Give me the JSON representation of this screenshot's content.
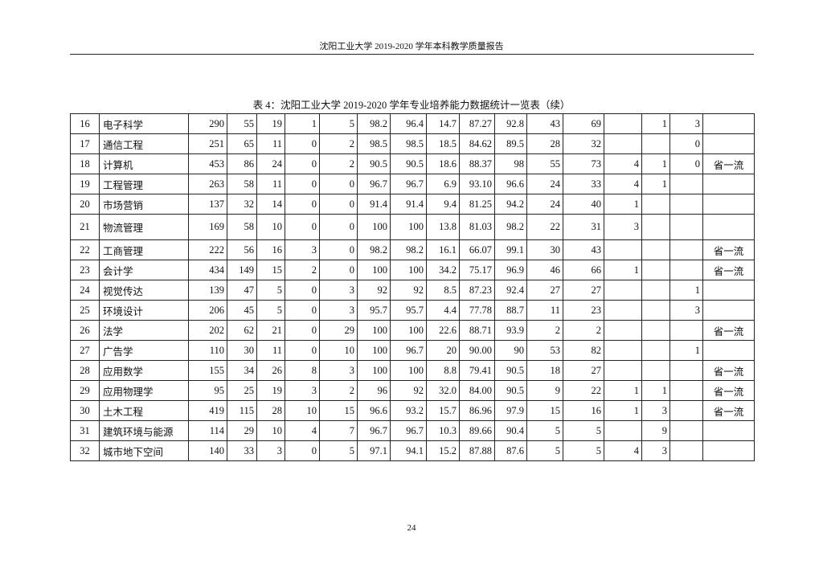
{
  "header": {
    "title": "沈阳工业大学 2019-2020 学年本科教学质量报告"
  },
  "table": {
    "caption": "表 4：沈阳工业大学 2019-2020 学年专业培养能力数据统计一览表（续）",
    "rows": [
      [
        "16",
        "电子科学",
        "290",
        "55",
        "19",
        "1",
        "5",
        "98.2",
        "96.4",
        "14.7",
        "87.27",
        "92.8",
        "43",
        "69",
        "",
        "1",
        "3",
        ""
      ],
      [
        "17",
        "通信工程",
        "251",
        "65",
        "11",
        "0",
        "2",
        "98.5",
        "98.5",
        "18.5",
        "84.62",
        "89.5",
        "28",
        "32",
        "",
        "",
        "0",
        ""
      ],
      [
        "18",
        "计算机",
        "453",
        "86",
        "24",
        "0",
        "2",
        "90.5",
        "90.5",
        "18.6",
        "88.37",
        "98",
        "55",
        "73",
        "4",
        "1",
        "0",
        "省一流"
      ],
      [
        "19",
        "工程管理",
        "263",
        "58",
        "11",
        "0",
        "0",
        "96.7",
        "96.7",
        "6.9",
        "93.10",
        "96.6",
        "24",
        "33",
        "4",
        "1",
        "",
        ""
      ],
      [
        "20",
        "市场营销",
        "137",
        "32",
        "14",
        "0",
        "0",
        "91.4",
        "91.4",
        "9.4",
        "81.25",
        "94.2",
        "24",
        "40",
        "1",
        "",
        "",
        ""
      ],
      [
        "21",
        "物流管理",
        "169",
        "58",
        "10",
        "0",
        "0",
        "100",
        "100",
        "13.8",
        "81.03",
        "98.2",
        "22",
        "31",
        "3",
        "",
        "",
        ""
      ],
      [
        "22",
        "工商管理",
        "222",
        "56",
        "16",
        "3",
        "0",
        "98.2",
        "98.2",
        "16.1",
        "66.07",
        "99.1",
        "30",
        "43",
        "",
        "",
        "",
        "省一流"
      ],
      [
        "23",
        "会计学",
        "434",
        "149",
        "15",
        "2",
        "0",
        "100",
        "100",
        "34.2",
        "75.17",
        "96.9",
        "46",
        "66",
        "1",
        "",
        "",
        "省一流"
      ],
      [
        "24",
        "视觉传达",
        "139",
        "47",
        "5",
        "0",
        "3",
        "92",
        "92",
        "8.5",
        "87.23",
        "92.4",
        "27",
        "27",
        "",
        "",
        "1",
        ""
      ],
      [
        "25",
        "环境设计",
        "206",
        "45",
        "5",
        "0",
        "3",
        "95.7",
        "95.7",
        "4.4",
        "77.78",
        "88.7",
        "11",
        "23",
        "",
        "",
        "3",
        ""
      ],
      [
        "26",
        "法学",
        "202",
        "62",
        "21",
        "0",
        "29",
        "100",
        "100",
        "22.6",
        "88.71",
        "93.9",
        "2",
        "2",
        "",
        "",
        "",
        "省一流"
      ],
      [
        "27",
        "广告学",
        "110",
        "30",
        "11",
        "0",
        "10",
        "100",
        "96.7",
        "20",
        "90.00",
        "90",
        "53",
        "82",
        "",
        "",
        "1",
        ""
      ],
      [
        "28",
        "应用数学",
        "155",
        "34",
        "26",
        "8",
        "3",
        "100",
        "100",
        "8.8",
        "79.41",
        "90.5",
        "18",
        "27",
        "",
        "",
        "",
        "省一流"
      ],
      [
        "29",
        "应用物理学",
        "95",
        "25",
        "19",
        "3",
        "2",
        "96",
        "92",
        "32.0",
        "84.00",
        "90.5",
        "9",
        "22",
        "1",
        "1",
        "",
        "省一流"
      ],
      [
        "30",
        "土木工程",
        "419",
        "115",
        "28",
        "10",
        "15",
        "96.6",
        "93.2",
        "15.7",
        "86.96",
        "97.9",
        "15",
        "16",
        "1",
        "3",
        "",
        "省一流"
      ],
      [
        "31",
        "建筑环境与能源",
        "114",
        "29",
        "10",
        "4",
        "7",
        "96.7",
        "96.7",
        "10.3",
        "89.66",
        "90.4",
        "5",
        "5",
        "",
        "9",
        "",
        ""
      ],
      [
        "32",
        "城市地下空间",
        "140",
        "33",
        "3",
        "0",
        "5",
        "97.1",
        "94.1",
        "15.2",
        "87.88",
        "87.6",
        "5",
        "5",
        "4",
        "3",
        "",
        ""
      ]
    ]
  },
  "footer": {
    "page_number": "24"
  }
}
